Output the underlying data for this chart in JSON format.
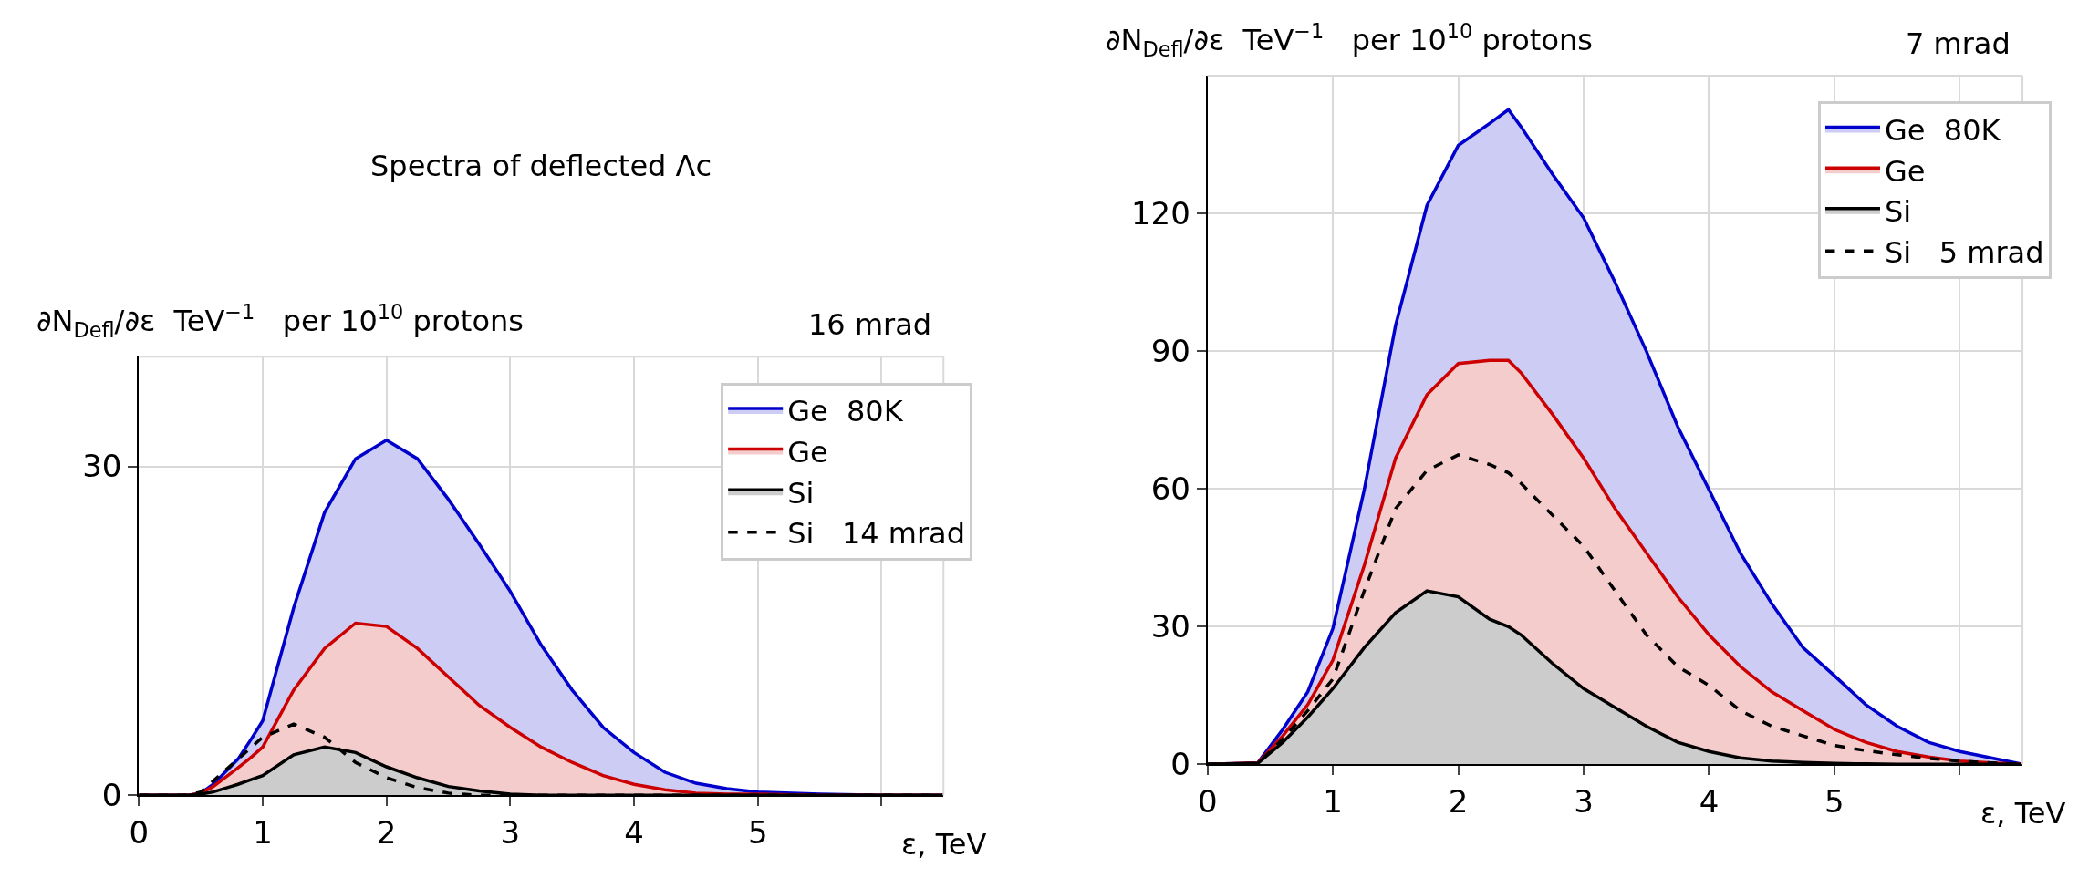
{
  "chart_data": [
    {
      "type": "area",
      "title": "Spectra of deflected Λc",
      "xlabel": "ε, TeV",
      "ylabel": "∂N$_{Defl}$/∂ε  TeV$^{−1}$   per 10$^{10}$ protons",
      "annotations": [
        "16 mrad"
      ],
      "x": [
        0,
        0.4,
        0.5,
        0.6,
        0.8,
        0.9,
        1.0,
        1.25,
        1.5,
        1.75,
        2.0,
        2.25,
        2.5,
        2.75,
        3.0,
        3.25,
        3.5,
        3.75,
        4.0,
        4.25,
        4.5,
        4.75,
        5.0,
        5.5,
        6.0,
        6.5
      ],
      "series": [
        {
          "name": "Ge  80K",
          "color": "#0000cc",
          "values": [
            0,
            0,
            0.2,
            1.0,
            3.3,
            5.0,
            6.8,
            17.1,
            25.8,
            30.7,
            32.4,
            30.7,
            27.0,
            22.9,
            18.6,
            13.7,
            9.6,
            6.2,
            3.9,
            2.1,
            1.1,
            0.6,
            0.3,
            0.1,
            0,
            0
          ]
        },
        {
          "name": "Ge",
          "color": "#cc0000",
          "values": [
            0,
            0,
            0.2,
            0.8,
            2.5,
            3.4,
            4.4,
            9.6,
            13.4,
            15.7,
            15.4,
            13.4,
            10.8,
            8.2,
            6.2,
            4.4,
            3.0,
            1.8,
            1.0,
            0.5,
            0.2,
            0.1,
            0.1,
            0,
            0,
            0
          ]
        },
        {
          "name": "Si",
          "color": "#000000",
          "values": [
            0,
            0,
            0.1,
            0.3,
            1.0,
            1.4,
            1.8,
            3.7,
            4.4,
            3.9,
            2.6,
            1.6,
            0.8,
            0.4,
            0.1,
            0,
            0,
            0,
            0,
            0,
            0,
            0,
            0,
            0,
            0,
            0
          ]
        },
        {
          "name": "Si   14 mrad",
          "color": "#000000",
          "type": "line",
          "line_style": "dashed",
          "values": [
            0,
            0,
            0.3,
            1.3,
            3.3,
            4.3,
            5.3,
            6.5,
            5.3,
            3.0,
            1.6,
            0.7,
            0.2,
            0,
            0,
            0,
            0,
            0,
            0,
            0,
            0,
            0,
            0,
            0,
            0,
            0
          ]
        }
      ],
      "xlim": [
        0,
        6.5
      ],
      "xticks": [
        0,
        1,
        2,
        3,
        4,
        5,
        {
          "value": 6,
          "label": null
        }
      ],
      "ylim": [
        0,
        40
      ],
      "yticks": [
        0,
        30
      ],
      "grid": true,
      "legend": "top right"
    },
    {
      "type": "area",
      "xlabel": "ε, TeV",
      "ylabel": "∂N$_{Defl}$/∂ε  TeV$^{−1}$   per 10$^{10}$ protons",
      "annotations": [
        "7 mrad"
      ],
      "x": [
        0,
        0.4,
        0.6,
        0.8,
        1.0,
        1.25,
        1.5,
        1.75,
        2.0,
        2.25,
        2.4,
        2.5,
        2.75,
        3.0,
        3.25,
        3.5,
        3.75,
        4.0,
        4.25,
        4.5,
        4.75,
        5.0,
        5.25,
        5.5,
        5.75,
        6.0,
        6.25,
        6.5
      ],
      "series": [
        {
          "name": "Ge  80K",
          "color": "#0000cc",
          "values": [
            0,
            0.3,
            7.6,
            15.8,
            29.6,
            59.8,
            95.6,
            121.7,
            134.8,
            139.6,
            142.6,
            138.9,
            128.6,
            119.0,
            105.0,
            90.0,
            73.6,
            59.8,
            46.0,
            35.0,
            25.4,
            19.3,
            13.0,
            8.3,
            4.8,
            2.8,
            1.4,
            0
          ]
        },
        {
          "name": "Ge",
          "color": "#cc0000",
          "values": [
            0,
            0.3,
            6.2,
            13.0,
            22.7,
            43.3,
            66.7,
            80.5,
            87.3,
            88.0,
            88.0,
            85.3,
            76.3,
            66.7,
            55.7,
            46.1,
            36.5,
            28.2,
            21.3,
            15.8,
            11.7,
            7.6,
            4.8,
            2.8,
            1.6,
            0.7,
            0.3,
            0
          ]
        },
        {
          "name": "Si",
          "color": "#000000",
          "values": [
            0,
            0.2,
            4.8,
            10.3,
            16.5,
            25.4,
            33.0,
            37.8,
            36.5,
            31.6,
            30.0,
            28.2,
            22.0,
            16.5,
            12.4,
            8.3,
            4.8,
            2.8,
            1.4,
            0.7,
            0.4,
            0.2,
            0.1,
            0,
            0,
            0,
            0,
            0
          ]
        },
        {
          "name": "Si   5 mrad",
          "color": "#000000",
          "type": "line",
          "line_style": "dashed",
          "values": [
            0,
            0.2,
            5.5,
            11.7,
            18.6,
            37.8,
            55.7,
            64.0,
            67.4,
            65.3,
            63.5,
            61.2,
            54.3,
            47.5,
            37.8,
            28.2,
            21.3,
            17.2,
            11.7,
            8.3,
            6.2,
            4.1,
            3.0,
            2.1,
            1.3,
            0.7,
            0.3,
            0
          ]
        }
      ],
      "xlim": [
        0,
        6.5
      ],
      "xticks": [
        0,
        1,
        2,
        3,
        4,
        5,
        {
          "value": 6,
          "label": null
        }
      ],
      "ylim": [
        0,
        150
      ],
      "yticks": [
        0,
        30,
        60,
        90,
        120
      ],
      "grid": true,
      "legend": "top right"
    }
  ]
}
